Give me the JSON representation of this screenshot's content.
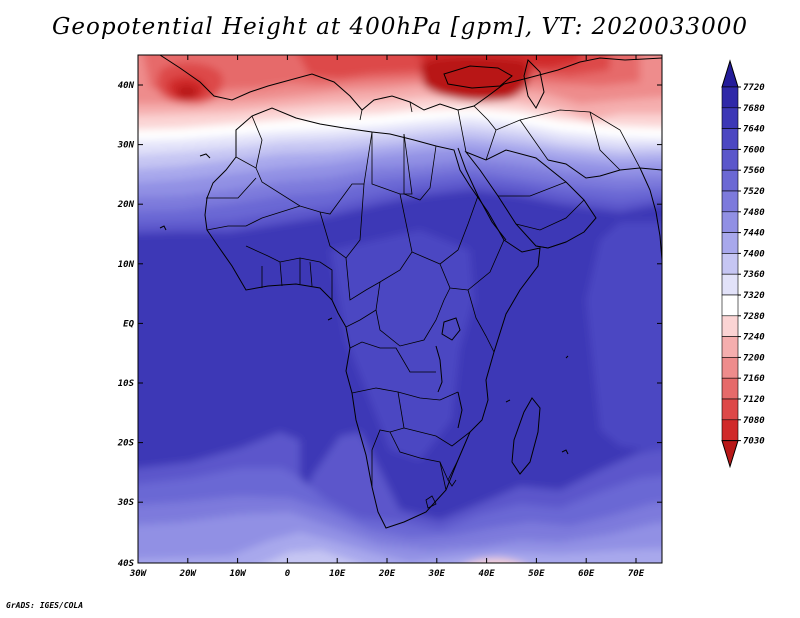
{
  "title": "Geopotential Height at 400hPa [gpm], VT: 2020033000",
  "credit": "GrADS: IGES/COLA",
  "map": {
    "lon_labels": [
      "30W",
      "20W",
      "10W",
      "0",
      "10E",
      "20E",
      "30E",
      "40E",
      "50E",
      "60E",
      "70E"
    ],
    "lat_labels": [
      "40N",
      "30N",
      "20N",
      "10N",
      "EQ",
      "10S",
      "20S",
      "30S",
      "40S"
    ]
  },
  "colorbar": {
    "levels": [
      "7720",
      "7680",
      "7640",
      "7600",
      "7560",
      "7520",
      "7480",
      "7440",
      "7400",
      "7360",
      "7320",
      "7280",
      "7240",
      "7200",
      "7160",
      "7120",
      "7080",
      "7030"
    ],
    "colors": [
      "#241c9a",
      "#2f28a8",
      "#3c37b6",
      "#4c47c2",
      "#5b57cb",
      "#6b68d4",
      "#7d7adc",
      "#9190e4",
      "#a8a8ec",
      "#c6c6f3",
      "#e2e2f9",
      "#ffffff",
      "#fbd4d4",
      "#f5aeae",
      "#ee8c8c",
      "#e66a6a",
      "#dd4848",
      "#d02a2a",
      "#b81818"
    ]
  },
  "field_colors": {
    "deep": "#3c37b6",
    "mid": "#4c47c2",
    "c1": "#5b57cb",
    "c2": "#6b68d4",
    "c3": "#7d7adc",
    "c4": "#9190e4",
    "c5": "#a8a8ec",
    "c6": "#c6c6f3",
    "c7": "#e2e2f9",
    "white": "#ffffff",
    "r1": "#fbd4d4",
    "r2": "#f5aeae",
    "r3": "#ee8c8c",
    "r4": "#e66a6a",
    "r5": "#dd4848",
    "r6": "#d02a2a",
    "r7": "#b81818"
  }
}
